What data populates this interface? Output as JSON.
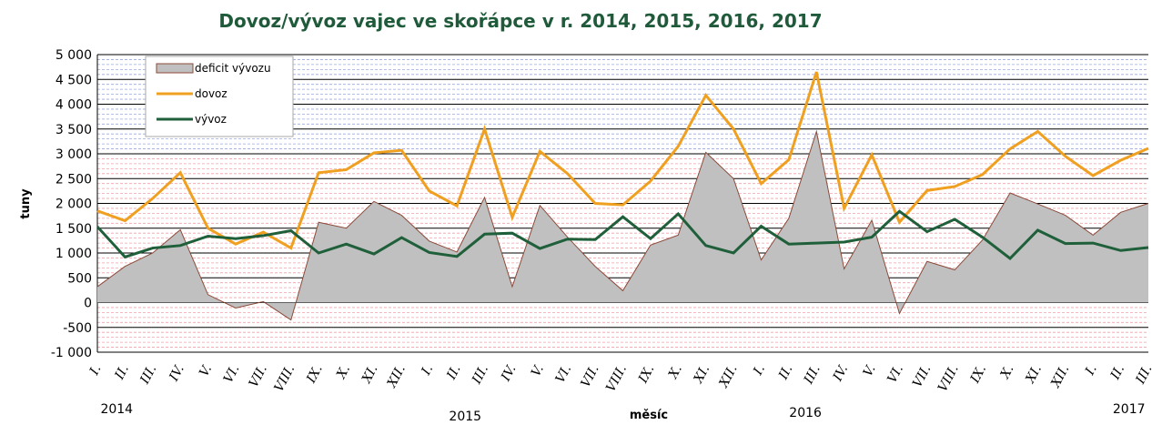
{
  "chart_data": {
    "type": "line",
    "title": "Dovoz/vývoz vajec ve skořápce v r. 2014, 2015, 2016, 2017",
    "x_label": "měsíc",
    "y_label": "tuny",
    "categories": [
      "I.",
      "II.",
      "III.",
      "IV.",
      "V.",
      "VI.",
      "VII.",
      "VIII.",
      "IX.",
      "X.",
      "XI.",
      "XII.",
      "I.",
      "II.",
      "III.",
      "IV.",
      "V.",
      "VI.",
      "VII.",
      "VIII.",
      "IX.",
      "X.",
      "XI.",
      "XII.",
      "I.",
      "II.",
      "III.",
      "IV.",
      "V.",
      "VI.",
      "VII.",
      "VIII.",
      "IX.",
      "X.",
      "XI.",
      "XII.",
      "I.",
      "II.",
      "III."
    ],
    "years": [
      "2014",
      "2015",
      "2016",
      "2017"
    ],
    "series": [
      {
        "name": "deficit vývozu",
        "type": "area",
        "color": "#c0c0c0",
        "edge": "#8b4a3a",
        "values": [
          320,
          730,
          1000,
          1470,
          160,
          -110,
          20,
          -350,
          1620,
          1500,
          2040,
          1760,
          1240,
          1020,
          2120,
          320,
          1960,
          1320,
          730,
          240,
          1160,
          1360,
          3030,
          2500,
          860,
          1700,
          3450,
          680,
          1660,
          -220,
          830,
          660,
          1260,
          2210,
          1990,
          1760,
          1360,
          1820,
          2000
        ]
      },
      {
        "name": "dovoz",
        "type": "line",
        "color": "#f0a020",
        "values": [
          1850,
          1650,
          2100,
          2620,
          1500,
          1180,
          1420,
          1100,
          2620,
          2680,
          3020,
          3070,
          2250,
          1950,
          3500,
          1720,
          3050,
          2600,
          2000,
          1970,
          2450,
          3150,
          4180,
          3500,
          2400,
          2880,
          4650,
          1900,
          2980,
          1620,
          2260,
          2340,
          2580,
          3100,
          3450,
          2950,
          2560,
          2870,
          3110
        ]
      },
      {
        "name": "vývoz",
        "type": "line",
        "color": "#1f5f3a",
        "values": [
          1530,
          920,
          1100,
          1150,
          1340,
          1290,
          1350,
          1450,
          1000,
          1180,
          980,
          1310,
          1010,
          930,
          1380,
          1400,
          1090,
          1280,
          1270,
          1730,
          1290,
          1790,
          1150,
          1000,
          1540,
          1180,
          1200,
          1220,
          1320,
          1840,
          1430,
          1680,
          1320,
          890,
          1460,
          1190,
          1200,
          1050,
          1110
        ]
      }
    ],
    "ylim": [
      -1000,
      5000
    ],
    "yticks": [
      {
        "value": -1000,
        "label": "-1 000"
      },
      -500,
      0,
      500,
      {
        "value": 1000,
        "label": "1 000"
      },
      {
        "value": 1500,
        "label": "1 500"
      },
      {
        "value": 2000,
        "label": "2 000"
      },
      {
        "value": 2500,
        "label": "2 500"
      },
      {
        "value": 3000,
        "label": "3 000"
      },
      {
        "value": 3500,
        "label": "3 500"
      },
      {
        "value": 4000,
        "label": "4 000"
      },
      {
        "value": 4500,
        "label": "4 500"
      },
      {
        "value": 5000,
        "label": "5 000"
      }
    ],
    "grid": true,
    "minor_grid": true,
    "legend": "upper left"
  }
}
